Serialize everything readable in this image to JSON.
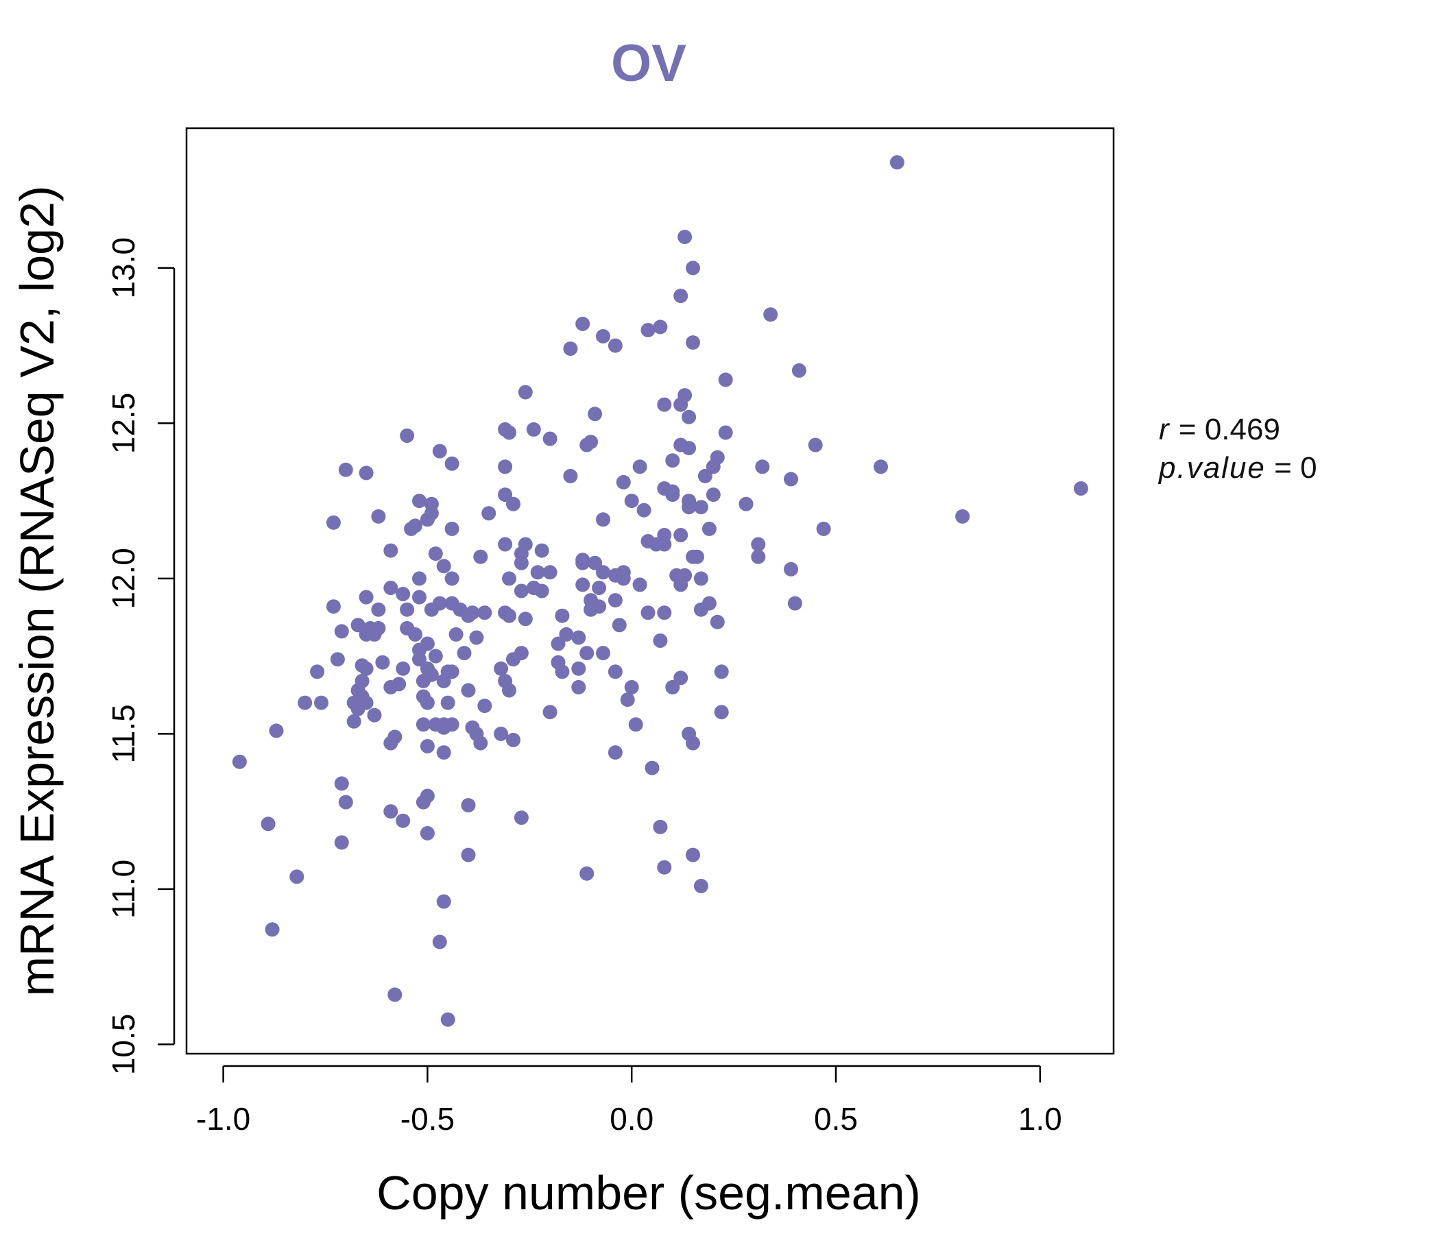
{
  "chart_data": {
    "type": "scatter",
    "title": "OV",
    "xlabel": "Copy number (seg.mean)",
    "ylabel": "mRNA Expression (RNASeq V2, log2)",
    "xlim": [
      -1.09,
      1.18
    ],
    "ylim": [
      10.47,
      13.45
    ],
    "xticks": [
      "-1.0",
      "-0.5",
      "0.0",
      "0.5",
      "1.0"
    ],
    "xtick_values": [
      -1.0,
      -0.5,
      0.0,
      0.5,
      1.0
    ],
    "yticks": [
      "10.5",
      "11.0",
      "11.5",
      "12.0",
      "12.5",
      "13.0"
    ],
    "ytick_values": [
      10.5,
      11.0,
      11.5,
      12.0,
      12.5,
      13.0
    ],
    "grid": false,
    "point_color": "#7570b3",
    "annotation": {
      "r_label": "r",
      "r_value": "0.469",
      "p_label": "p.value",
      "p_value": "0",
      "equals": "="
    },
    "points": [
      [
        0.65,
        13.34
      ],
      [
        0.13,
        13.1
      ],
      [
        0.15,
        13.0
      ],
      [
        0.12,
        12.91
      ],
      [
        0.34,
        12.85
      ],
      [
        -0.12,
        12.82
      ],
      [
        0.04,
        12.8
      ],
      [
        0.07,
        12.81
      ],
      [
        -0.07,
        12.78
      ],
      [
        -0.04,
        12.75
      ],
      [
        -0.15,
        12.74
      ],
      [
        0.15,
        12.76
      ],
      [
        0.41,
        12.67
      ],
      [
        0.23,
        12.64
      ],
      [
        -0.26,
        12.6
      ],
      [
        0.13,
        12.59
      ],
      [
        0.08,
        12.56
      ],
      [
        0.12,
        12.56
      ],
      [
        -0.09,
        12.53
      ],
      [
        0.14,
        12.52
      ],
      [
        -0.31,
        12.48
      ],
      [
        -0.3,
        12.47
      ],
      [
        -0.24,
        12.48
      ],
      [
        -0.2,
        12.45
      ],
      [
        -0.55,
        12.46
      ],
      [
        -0.1,
        12.44
      ],
      [
        -0.11,
        12.43
      ],
      [
        0.23,
        12.47
      ],
      [
        0.12,
        12.43
      ],
      [
        0.14,
        12.42
      ],
      [
        0.45,
        12.43
      ],
      [
        -0.47,
        12.41
      ],
      [
        -0.44,
        12.37
      ],
      [
        -0.7,
        12.35
      ],
      [
        -0.65,
        12.34
      ],
      [
        -0.31,
        12.36
      ],
      [
        -0.15,
        12.33
      ],
      [
        0.02,
        12.36
      ],
      [
        0.1,
        12.38
      ],
      [
        0.21,
        12.39
      ],
      [
        0.2,
        12.36
      ],
      [
        0.18,
        12.33
      ],
      [
        0.32,
        12.36
      ],
      [
        0.39,
        12.32
      ],
      [
        0.61,
        12.36
      ],
      [
        1.1,
        12.29
      ],
      [
        -0.02,
        12.31
      ],
      [
        0.08,
        12.29
      ],
      [
        0.1,
        12.27
      ],
      [
        0.1,
        12.28
      ],
      [
        -0.31,
        12.27
      ],
      [
        -0.29,
        12.24
      ],
      [
        -0.52,
        12.25
      ],
      [
        -0.49,
        12.24
      ],
      [
        -0.49,
        12.21
      ],
      [
        -0.62,
        12.2
      ],
      [
        -0.35,
        12.21
      ],
      [
        -0.5,
        12.19
      ],
      [
        -0.53,
        12.17
      ],
      [
        -0.54,
        12.16
      ],
      [
        -0.73,
        12.18
      ],
      [
        -0.44,
        12.16
      ],
      [
        -0.07,
        12.19
      ],
      [
        0.0,
        12.25
      ],
      [
        0.03,
        12.22
      ],
      [
        0.14,
        12.25
      ],
      [
        0.14,
        12.23
      ],
      [
        0.17,
        12.23
      ],
      [
        0.2,
        12.27
      ],
      [
        0.28,
        12.24
      ],
      [
        0.47,
        12.16
      ],
      [
        0.81,
        12.2
      ],
      [
        0.19,
        12.16
      ],
      [
        0.12,
        12.14
      ],
      [
        0.08,
        12.14
      ],
      [
        0.04,
        12.12
      ],
      [
        0.06,
        12.11
      ],
      [
        0.08,
        12.11
      ],
      [
        -0.26,
        12.11
      ],
      [
        -0.31,
        12.11
      ],
      [
        -0.22,
        12.09
      ],
      [
        -0.27,
        12.08
      ],
      [
        -0.37,
        12.07
      ],
      [
        -0.59,
        12.09
      ],
      [
        -0.48,
        12.08
      ],
      [
        -0.12,
        12.06
      ],
      [
        -0.12,
        12.05
      ],
      [
        -0.27,
        12.05
      ],
      [
        -0.23,
        12.02
      ],
      [
        -0.2,
        12.02
      ],
      [
        -0.3,
        12.0
      ],
      [
        -0.46,
        12.04
      ],
      [
        -0.44,
        12.0
      ],
      [
        -0.52,
        12.0
      ],
      [
        -0.59,
        11.97
      ],
      [
        -0.56,
        11.95
      ],
      [
        -0.52,
        11.94
      ],
      [
        -0.65,
        11.94
      ],
      [
        -0.09,
        12.05
      ],
      [
        -0.07,
        12.02
      ],
      [
        -0.04,
        12.01
      ],
      [
        -0.02,
        12.02
      ],
      [
        -0.02,
        12.0
      ],
      [
        0.02,
        11.98
      ],
      [
        0.11,
        12.01
      ],
      [
        0.12,
        11.98
      ],
      [
        0.13,
        12.01
      ],
      [
        0.15,
        12.07
      ],
      [
        0.16,
        12.07
      ],
      [
        0.17,
        12.0
      ],
      [
        0.31,
        12.07
      ],
      [
        0.31,
        12.11
      ],
      [
        0.39,
        12.03
      ],
      [
        0.4,
        11.92
      ],
      [
        -0.12,
        11.98
      ],
      [
        -0.08,
        11.97
      ],
      [
        -0.1,
        11.93
      ],
      [
        -0.04,
        11.93
      ],
      [
        -0.27,
        11.96
      ],
      [
        -0.22,
        11.96
      ],
      [
        -0.24,
        11.97
      ],
      [
        -0.44,
        11.92
      ],
      [
        -0.47,
        11.92
      ],
      [
        -0.49,
        11.9
      ],
      [
        -0.42,
        11.9
      ],
      [
        -0.36,
        11.89
      ],
      [
        -0.39,
        11.89
      ],
      [
        -0.4,
        11.88
      ],
      [
        -0.3,
        11.88
      ],
      [
        -0.31,
        11.89
      ],
      [
        -0.26,
        11.87
      ],
      [
        -0.17,
        11.88
      ],
      [
        -0.08,
        11.91
      ],
      [
        -0.1,
        11.9
      ],
      [
        -0.03,
        11.85
      ],
      [
        0.04,
        11.89
      ],
      [
        0.08,
        11.89
      ],
      [
        0.17,
        11.9
      ],
      [
        0.19,
        11.92
      ],
      [
        0.21,
        11.86
      ],
      [
        -0.55,
        11.9
      ],
      [
        -0.62,
        11.9
      ],
      [
        -0.73,
        11.91
      ],
      [
        -0.67,
        11.85
      ],
      [
        -0.64,
        11.84
      ],
      [
        -0.65,
        11.82
      ],
      [
        -0.63,
        11.82
      ],
      [
        -0.62,
        11.84
      ],
      [
        -0.55,
        11.84
      ],
      [
        -0.53,
        11.82
      ],
      [
        -0.71,
        11.83
      ],
      [
        -0.43,
        11.82
      ],
      [
        -0.38,
        11.81
      ],
      [
        -0.16,
        11.82
      ],
      [
        -0.18,
        11.79
      ],
      [
        -0.13,
        11.81
      ],
      [
        0.07,
        11.8
      ],
      [
        -0.5,
        11.79
      ],
      [
        -0.52,
        11.77
      ],
      [
        -0.52,
        11.74
      ],
      [
        -0.48,
        11.75
      ],
      [
        -0.41,
        11.76
      ],
      [
        -0.27,
        11.76
      ],
      [
        -0.29,
        11.74
      ],
      [
        -0.32,
        11.71
      ],
      [
        -0.18,
        11.73
      ],
      [
        -0.17,
        11.7
      ],
      [
        -0.11,
        11.76
      ],
      [
        -0.07,
        11.76
      ],
      [
        -0.04,
        11.7
      ],
      [
        -0.13,
        11.71
      ],
      [
        0.12,
        11.68
      ],
      [
        0.1,
        11.65
      ],
      [
        0.22,
        11.7
      ],
      [
        -0.72,
        11.74
      ],
      [
        -0.77,
        11.7
      ],
      [
        -0.66,
        11.72
      ],
      [
        -0.65,
        11.71
      ],
      [
        -0.61,
        11.73
      ],
      [
        -0.56,
        11.71
      ],
      [
        -0.5,
        11.71
      ],
      [
        -0.49,
        11.69
      ],
      [
        -0.45,
        11.7
      ],
      [
        -0.44,
        11.7
      ],
      [
        -0.51,
        11.67
      ],
      [
        -0.46,
        11.67
      ],
      [
        -0.31,
        11.67
      ],
      [
        -0.3,
        11.64
      ],
      [
        -0.4,
        11.64
      ],
      [
        -0.66,
        11.67
      ],
      [
        -0.67,
        11.64
      ],
      [
        -0.59,
        11.65
      ],
      [
        -0.57,
        11.66
      ],
      [
        -0.66,
        11.62
      ],
      [
        -0.68,
        11.6
      ],
      [
        -0.67,
        11.58
      ],
      [
        -0.65,
        11.6
      ],
      [
        -0.63,
        11.56
      ],
      [
        -0.51,
        11.62
      ],
      [
        -0.5,
        11.6
      ],
      [
        -0.45,
        11.6
      ],
      [
        -0.36,
        11.59
      ],
      [
        -0.2,
        11.57
      ],
      [
        -0.13,
        11.65
      ],
      [
        0.0,
        11.65
      ],
      [
        -0.01,
        11.61
      ],
      [
        0.22,
        11.57
      ],
      [
        -0.76,
        11.6
      ],
      [
        -0.8,
        11.6
      ],
      [
        -0.68,
        11.54
      ],
      [
        -0.51,
        11.53
      ],
      [
        -0.48,
        11.53
      ],
      [
        -0.46,
        11.53
      ],
      [
        -0.44,
        11.53
      ],
      [
        -0.46,
        11.52
      ],
      [
        -0.39,
        11.52
      ],
      [
        -0.38,
        11.5
      ],
      [
        -0.37,
        11.47
      ],
      [
        -0.32,
        11.5
      ],
      [
        -0.29,
        11.48
      ],
      [
        0.01,
        11.53
      ],
      [
        0.14,
        11.5
      ],
      [
        0.15,
        11.47
      ],
      [
        -0.87,
        11.51
      ],
      [
        -0.96,
        11.41
      ],
      [
        -0.58,
        11.49
      ],
      [
        -0.59,
        11.47
      ],
      [
        -0.5,
        11.46
      ],
      [
        -0.46,
        11.44
      ],
      [
        -0.04,
        11.44
      ],
      [
        0.05,
        11.39
      ],
      [
        -0.71,
        11.34
      ],
      [
        -0.7,
        11.28
      ],
      [
        -0.59,
        11.25
      ],
      [
        -0.56,
        11.22
      ],
      [
        -0.5,
        11.3
      ],
      [
        -0.51,
        11.28
      ],
      [
        -0.4,
        11.27
      ],
      [
        -0.27,
        11.23
      ],
      [
        -0.5,
        11.18
      ],
      [
        -0.89,
        11.21
      ],
      [
        -0.71,
        11.15
      ],
      [
        0.07,
        11.2
      ],
      [
        -0.4,
        11.11
      ],
      [
        0.15,
        11.11
      ],
      [
        0.08,
        11.07
      ],
      [
        -0.11,
        11.05
      ],
      [
        0.17,
        11.01
      ],
      [
        -0.82,
        11.04
      ],
      [
        -0.46,
        10.96
      ],
      [
        -0.88,
        10.87
      ],
      [
        -0.47,
        10.83
      ],
      [
        -0.58,
        10.66
      ],
      [
        -0.45,
        10.58
      ]
    ]
  }
}
